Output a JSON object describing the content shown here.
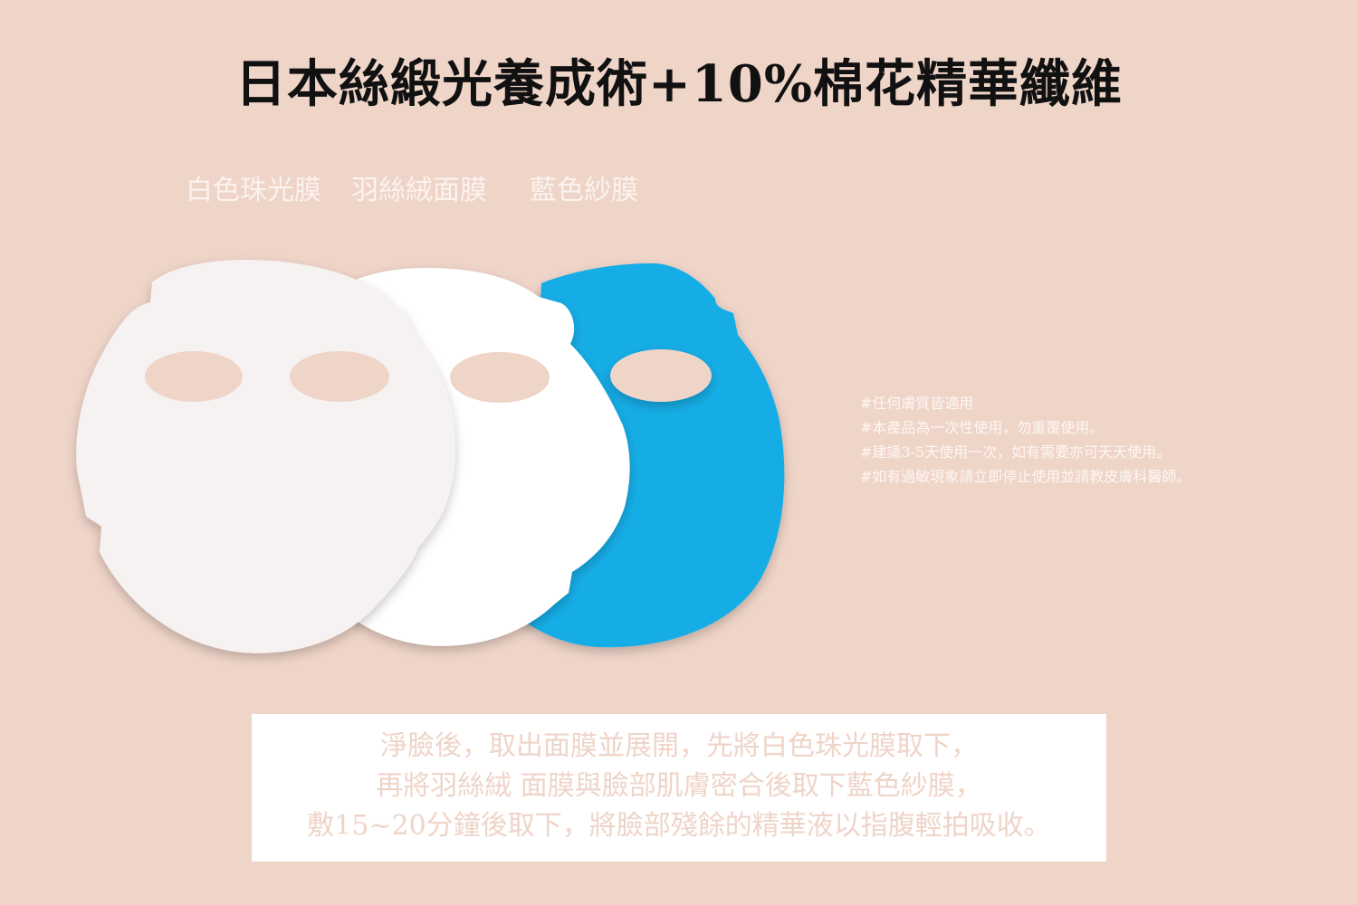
{
  "title": "日本絲緞光養成術+10%棉花精華纖維",
  "layers": {
    "white_pearl": "白色珠光膜",
    "velvet": "羽絲絨面膜",
    "blue_gauze": "藍色紗膜"
  },
  "notes": [
    "#任何膚質皆適用",
    "#本產品為一次性使用，勿重覆使用。",
    "#建議3-5天使用一次，如有需要亦可天天使用。",
    "#如有過敏現象請立即停止使用並請教皮膚科醫師。"
  ],
  "instructions": [
    "淨臉後，取出面膜並展開，先將白色珠光膜取下，",
    "再將羽絲絨 面膜與臉部肌膚密合後取下藍色紗膜，",
    "敷15~20分鐘後取下，將臉部殘餘的精華液以指腹輕拍吸收。"
  ],
  "colors": {
    "background": "#efd4c8",
    "pearl_mask": "#f6f2f2",
    "velvet_mask": "#ffffff",
    "gauze_mask": "#14ade6",
    "title_text": "#111111"
  }
}
